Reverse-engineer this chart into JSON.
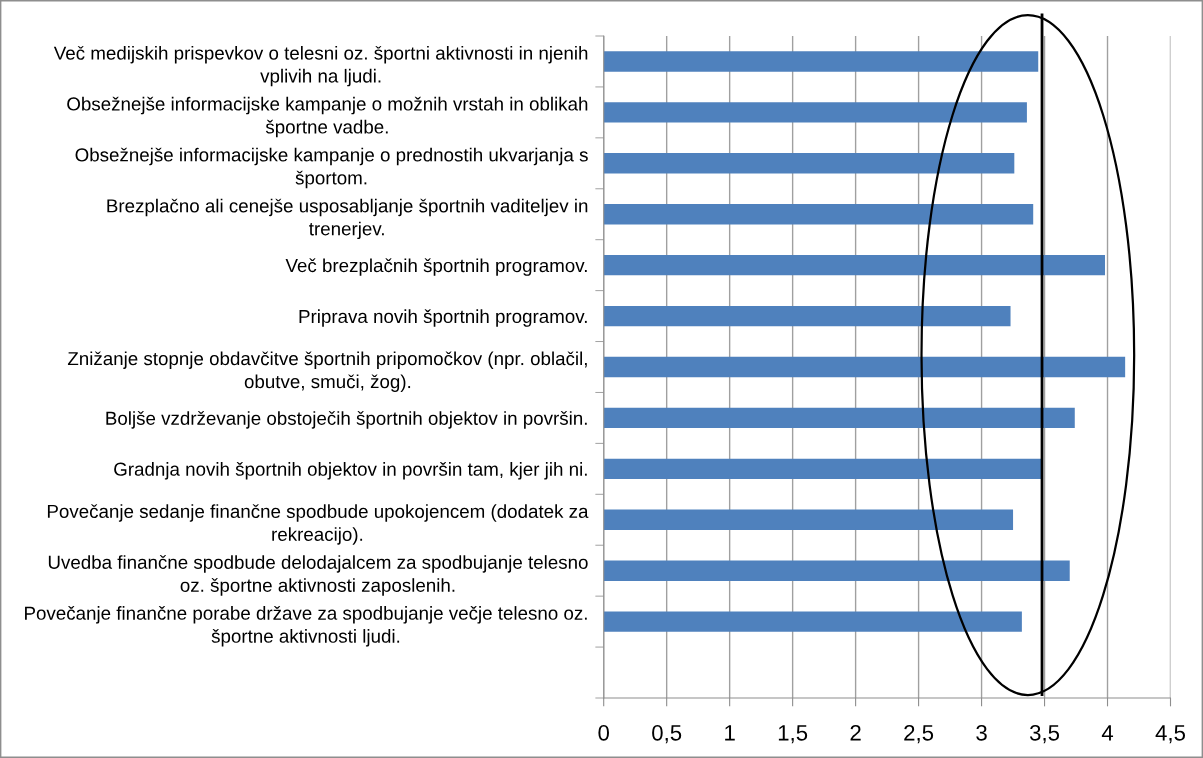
{
  "chart_data": {
    "type": "bar",
    "orientation": "horizontal",
    "categories": [
      "Več medijskih prispevkov o telesni oz. športni aktivnosti in njenih\nvplivih na ljudi.",
      "Obsežnejše informacijske kampanje o možnih vrstah in oblikah\nšportne vadbe.",
      "Obsežnejše informacijske kampanje o prednostih ukvarjanja s\nšportom.",
      "Brezplačno ali cenejše usposabljanje športnih vaditeljev in\ntrenerjev.",
      "Več brezplačnih športnih programov.",
      "Priprava novih športnih programov.",
      "Znižanje stopnje obdavčitve športnih pripomočkov (npr. oblačil,\nobutve, smuči, žog).",
      "Boljše vzdrževanje obstoječih športnih objektov in površin.",
      "Gradnja novih športnih objektov in površin tam, kjer jih ni.",
      "Povečanje sedanje finančne spodbude upokojencem (dodatek za\nrekreacijo).",
      "Uvedba finančne spodbude delodajalcem za spodbujanje telesno\noz. športne aktivnosti zaposlenih.",
      "Povečanje finančne porabe države za spodbujanje večje telesno oz.\nšportne aktivnosti ljudi.",
      null
    ],
    "values": [
      3.45,
      3.36,
      3.26,
      3.41,
      3.98,
      3.23,
      4.14,
      3.74,
      3.48,
      3.25,
      3.7,
      3.32,
      null
    ],
    "color": "#4f81bd",
    "xlim": [
      0,
      4.5
    ],
    "xticks": [
      0,
      {
        "value": 0.5,
        "label": "0,5"
      },
      1,
      {
        "value": 1.5,
        "label": "1,5"
      },
      2,
      {
        "value": 2.5,
        "label": "2,5"
      },
      3,
      {
        "value": 3.5,
        "label": "3,5"
      },
      4,
      {
        "value": 4.5,
        "label": "4,5"
      }
    ],
    "grid": "x",
    "ref_lines": [
      {
        "axis": "x",
        "value": 3.48,
        "color": "#000000"
      }
    ]
  }
}
